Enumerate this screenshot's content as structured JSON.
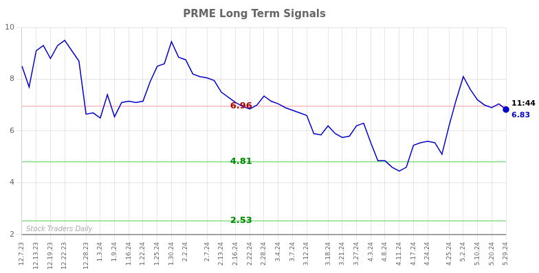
{
  "chart_data": {
    "type": "line",
    "title": "PRME Long Term Signals",
    "categories": [
      "12.7.23",
      null,
      "12.13.23",
      null,
      "12.19.23",
      null,
      "12.22.23",
      null,
      null,
      "12.28.23",
      null,
      "1.3.24",
      null,
      "1.9.24",
      null,
      "1.16.24",
      null,
      "1.22.24",
      null,
      "1.25.24",
      null,
      "1.30.24",
      null,
      "2.2.24",
      null,
      null,
      "2.7.24",
      null,
      "2.13.24",
      null,
      "2.16.24",
      null,
      "2.22.24",
      null,
      "2.28.24",
      null,
      "3.4.24",
      null,
      "3.7.24",
      null,
      "3.12.24",
      null,
      null,
      "3.18.24",
      null,
      "3.21.24",
      null,
      "3.27.24",
      null,
      "4.3.24",
      null,
      "4.8.24",
      null,
      "4.11.24",
      null,
      "4.17.24",
      null,
      "4.24.24",
      null,
      null,
      "4.25.24",
      null,
      "5.2.24",
      null,
      "5.10.24",
      null,
      "5.20.24",
      null,
      "5.29.24"
    ],
    "values": [
      8.5,
      7.7,
      9.1,
      9.3,
      8.8,
      9.3,
      9.5,
      9.1,
      8.7,
      6.65,
      6.7,
      6.5,
      7.4,
      6.55,
      7.1,
      7.15,
      7.1,
      7.15,
      7.9,
      8.5,
      8.6,
      9.45,
      8.85,
      8.75,
      8.2,
      8.1,
      8.05,
      7.95,
      7.5,
      7.3,
      7.1,
      6.95,
      6.85,
      7.0,
      7.35,
      7.15,
      7.05,
      6.9,
      6.8,
      6.7,
      6.6,
      5.9,
      5.85,
      6.2,
      5.9,
      5.75,
      5.8,
      6.2,
      6.3,
      5.55,
      4.85,
      4.85,
      4.6,
      4.45,
      4.6,
      5.45,
      5.55,
      5.6,
      5.55,
      5.1,
      6.2,
      7.2,
      8.1,
      7.6,
      7.2,
      7.0,
      6.9,
      7.05,
      6.83
    ],
    "color": "#0000cc",
    "ylim": [
      2.0,
      10.0
    ],
    "yticks": [
      2,
      4,
      6,
      8,
      10
    ],
    "grid": true,
    "annotations": [
      {
        "type": "hline",
        "y": 6.96,
        "color": "#ffbbbb",
        "text": "6.96",
        "text_color": "#aa0000"
      },
      {
        "type": "hline",
        "y": 4.81,
        "color": "#88dd88",
        "text": "4.81",
        "text_color": "#008800"
      },
      {
        "type": "hline",
        "y": 2.53,
        "color": "#88dd88",
        "text": "2.53",
        "text_color": "#008800"
      },
      {
        "type": "hline",
        "y": 2.0,
        "color": "#888888",
        "text": "Stock Traders Daily",
        "text_color": "#aaaaaa"
      },
      {
        "type": "last_point",
        "color": "#0000cc",
        "marker": "circle",
        "texts": [
          {
            "text": "11:44",
            "color": "#000000"
          },
          {
            "text": "6.83",
            "color": "#0000cc"
          }
        ]
      }
    ]
  }
}
